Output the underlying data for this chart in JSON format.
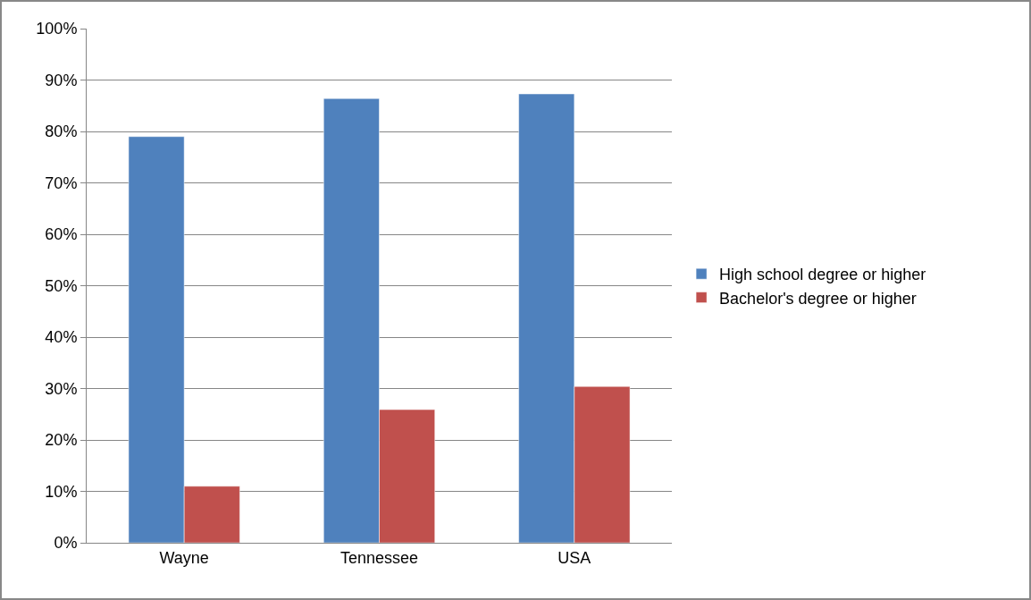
{
  "chart_data": {
    "type": "bar",
    "categories": [
      "Wayne",
      "Tennessee",
      "USA"
    ],
    "series": [
      {
        "name": "High school degree or higher",
        "color": "#4f81bd",
        "values": [
          79.0,
          86.4,
          87.3
        ]
      },
      {
        "name": "Bachelor's degree or higher",
        "color": "#c0504d",
        "values": [
          11.0,
          25.9,
          30.4
        ]
      }
    ],
    "ylim": [
      0,
      100
    ],
    "yticks": [
      {
        "value": 0,
        "label": "0%"
      },
      {
        "value": 10,
        "label": "10%"
      },
      {
        "value": 20,
        "label": "20%"
      },
      {
        "value": 30,
        "label": "30%"
      },
      {
        "value": 40,
        "label": "40%"
      },
      {
        "value": 50,
        "label": "50%"
      },
      {
        "value": 60,
        "label": "60%"
      },
      {
        "value": 70,
        "label": "70%"
      },
      {
        "value": 80,
        "label": "80%"
      },
      {
        "value": 90,
        "label": "90%"
      },
      {
        "value": 100,
        "label": "100%"
      }
    ],
    "grid": "y",
    "legend": "right"
  }
}
